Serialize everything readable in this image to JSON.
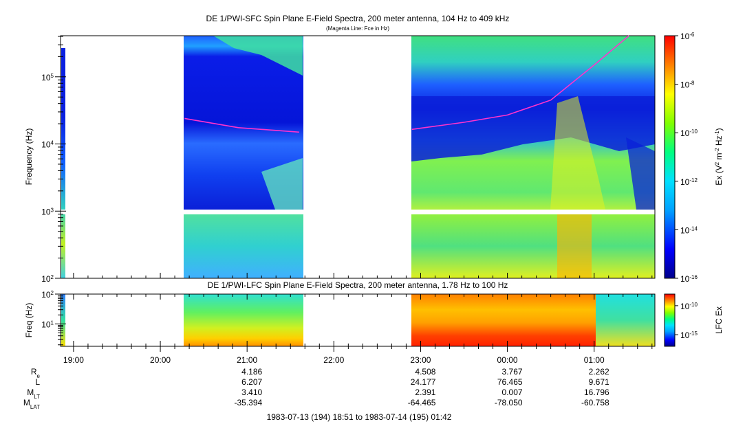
{
  "title": "DE 1/PWI-SFC  Spin Plane E-Field Spectra, 200 meter antenna, 104 Hz to 409 kHz",
  "subtitle": "(Magenta Line: Fce in Hz)",
  "lower_title": "DE 1/PWI-LFC  Spin Plane E-Field Spectra, 200 meter antenna, 1.78 Hz to 100 Hz",
  "footer": "1983-07-13 (194) 18:51 to 1983-07-14 (195) 01:42",
  "colors": {
    "fce_line": "#ff33cc",
    "gap": "#ffffff"
  },
  "chart_data": [
    {
      "type": "heatmap",
      "title": "DE 1/PWI-SFC  Spin Plane E-Field Spectra, 200 meter antenna, 104 Hz to 409 kHz",
      "subtitle": "(Magenta Line: Fce in Hz)",
      "ylabel": "Frequency (Hz)",
      "yscale": "log",
      "ylim": [
        100,
        409000
      ],
      "y_ticks": [
        {
          "value": 100,
          "base": "10",
          "exp": "2"
        },
        {
          "value": 1000,
          "base": "10",
          "exp": "3"
        },
        {
          "value": 10000,
          "base": "10",
          "exp": "4"
        },
        {
          "value": 100000,
          "base": "10",
          "exp": "5"
        }
      ],
      "colorbar": {
        "label_main": "Ex (V",
        "label_sup1": "2",
        "label_mid": " m",
        "label_sup2": "-2",
        "label_mid2": " Hz",
        "label_sup3": "-1",
        "label_end": ")",
        "scale": "log",
        "range": [
          1e-16,
          1e-06
        ],
        "ticks": [
          {
            "value": 1e-06,
            "base": "10",
            "exp": "-6"
          },
          {
            "value": 1e-08,
            "base": "10",
            "exp": "-8"
          },
          {
            "value": 1e-10,
            "base": "10",
            "exp": "-10"
          },
          {
            "value": 1e-12,
            "base": "10",
            "exp": "-12"
          },
          {
            "value": 1e-14,
            "base": "10",
            "exp": "-14"
          },
          {
            "value": 1e-16,
            "base": "10",
            "exp": "-16"
          }
        ]
      },
      "x_range_hours": [
        18.85,
        25.7
      ],
      "data_segments_hours": [
        [
          18.87,
          18.92
        ],
        [
          20.28,
          21.67
        ],
        [
          22.9,
          25.7
        ]
      ],
      "fce_line": [
        {
          "t": 20.28,
          "f": 24000
        },
        {
          "t": 20.9,
          "f": 17500
        },
        {
          "t": 21.6,
          "f": 15000
        },
        {
          "t": 22.9,
          "f": 16500
        },
        {
          "t": 23.5,
          "f": 21000
        },
        {
          "t": 24.0,
          "f": 27000
        },
        {
          "t": 24.5,
          "f": 45000
        },
        {
          "t": 25.0,
          "f": 150000
        },
        {
          "t": 25.4,
          "f": 409000
        }
      ]
    },
    {
      "type": "heatmap",
      "title": "DE 1/PWI-LFC  Spin Plane E-Field Spectra, 200 meter antenna, 1.78 Hz to 100 Hz",
      "ylabel": "Freq (Hz)",
      "yscale": "log",
      "ylim": [
        1.78,
        100
      ],
      "y_ticks": [
        {
          "value": 10,
          "base": "10",
          "exp": "1"
        },
        {
          "value": 100,
          "base": "10",
          "exp": "2"
        }
      ],
      "colorbar": {
        "label": "LFC Ex",
        "scale": "log",
        "range": [
          1e-17,
          1e-08
        ],
        "ticks": [
          {
            "value": 1e-10,
            "base": "10",
            "exp": "-10"
          },
          {
            "value": 1e-15,
            "base": "10",
            "exp": "-15"
          }
        ]
      },
      "data_segments_hours": [
        [
          18.87,
          18.92
        ],
        [
          20.28,
          21.67
        ],
        [
          22.9,
          25.7
        ]
      ]
    }
  ],
  "x_axis": {
    "ticks": [
      {
        "hour": 19,
        "label": "19:00"
      },
      {
        "hour": 20,
        "label": "20:00"
      },
      {
        "hour": 21,
        "label": "21:00"
      },
      {
        "hour": 22,
        "label": "22:00"
      },
      {
        "hour": 23,
        "label": "23:00"
      },
      {
        "hour": 24,
        "label": "00:00"
      },
      {
        "hour": 25,
        "label": "01:00"
      }
    ]
  },
  "ephemeris": [
    {
      "name": "R",
      "sub": "e",
      "values": [
        "4.186",
        "4.508",
        "3.767",
        "2.262"
      ]
    },
    {
      "name": "L",
      "sub": "",
      "values": [
        "6.207",
        "24.177",
        "76.465",
        "9.671"
      ]
    },
    {
      "name": "M",
      "sub": "LT",
      "values": [
        "3.410",
        "2.391",
        "0.007",
        "16.796"
      ]
    },
    {
      "name": "M",
      "sub": "LAT",
      "values": [
        "-35.394",
        "-64.465",
        "-78.050",
        "-60.758"
      ]
    }
  ],
  "ephemeris_hours": [
    21,
    23,
    24,
    25
  ]
}
